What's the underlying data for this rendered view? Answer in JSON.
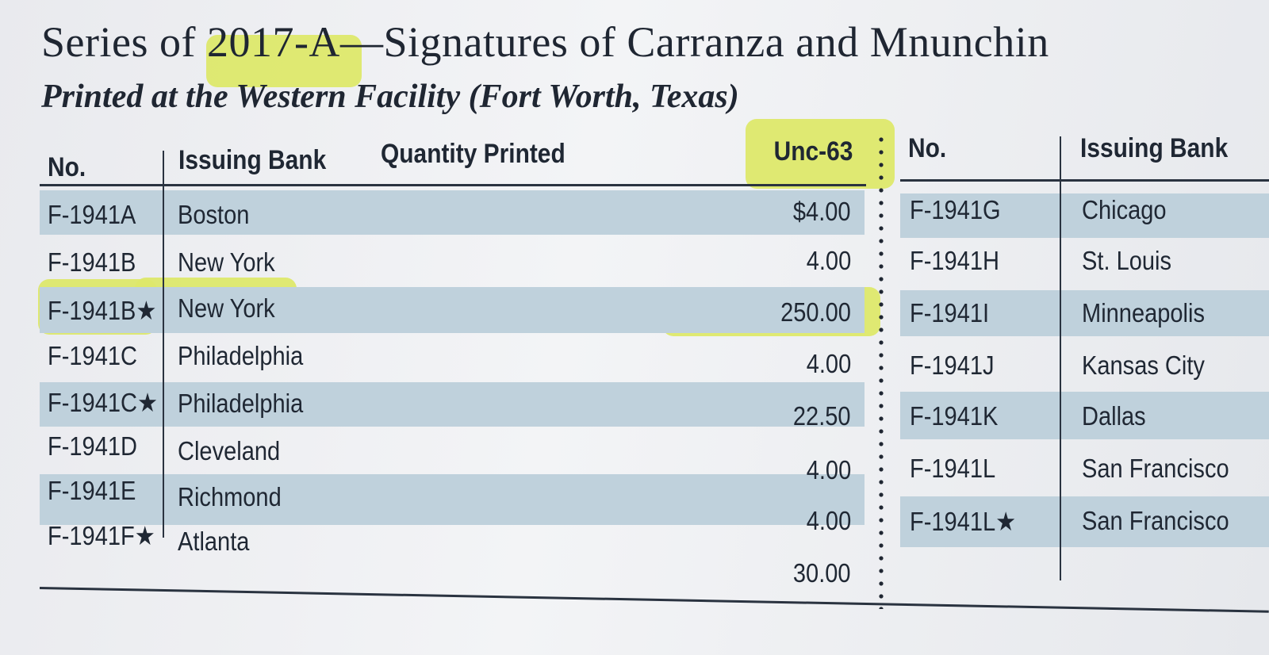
{
  "title": {
    "prefix": "Series of ",
    "series": "2017-A",
    "rest": "—Signatures of Carranza and Mnunchin"
  },
  "subtitle": "Printed at the Western Facility (Fort Worth, Texas)",
  "left_table": {
    "headers": {
      "no": "No.",
      "bank": "Issuing Bank",
      "quantity": "Quantity Printed",
      "unc": "Unc-63"
    },
    "rows": [
      {
        "no": "F-1941A",
        "bank": "Boston",
        "unc": "$4.00"
      },
      {
        "no": "F-1941B",
        "bank": "New York",
        "unc": "4.00"
      },
      {
        "no": "F-1941B★",
        "bank": "New York",
        "unc": "250.00"
      },
      {
        "no": "F-1941C",
        "bank": "Philadelphia",
        "unc": "4.00"
      },
      {
        "no": "F-1941C★",
        "bank": "Philadelphia",
        "unc": "22.50"
      },
      {
        "no": "F-1941D",
        "bank": "Cleveland",
        "unc": "4.00"
      },
      {
        "no": "F-1941E",
        "bank": "Richmond",
        "unc": "4.00"
      },
      {
        "no": "F-1941F★",
        "bank": "Atlanta",
        "unc": "30.00"
      }
    ]
  },
  "right_table": {
    "headers": {
      "no": "No.",
      "bank": "Issuing Bank"
    },
    "rows": [
      {
        "no": "F-1941G",
        "bank": "Chicago"
      },
      {
        "no": "F-1941H",
        "bank": "St. Louis"
      },
      {
        "no": "F-1941I",
        "bank": "Minneapolis"
      },
      {
        "no": "F-1941J",
        "bank": "Kansas City"
      },
      {
        "no": "F-1941K",
        "bank": "Dallas"
      },
      {
        "no": "F-1941L",
        "bank": "San Francisco"
      },
      {
        "no": "F-1941L★",
        "bank": "San Francisco"
      }
    ]
  },
  "colors": {
    "band": "#bfd1dc",
    "highlighter": "#dde86a",
    "ink": "#1f2632"
  }
}
